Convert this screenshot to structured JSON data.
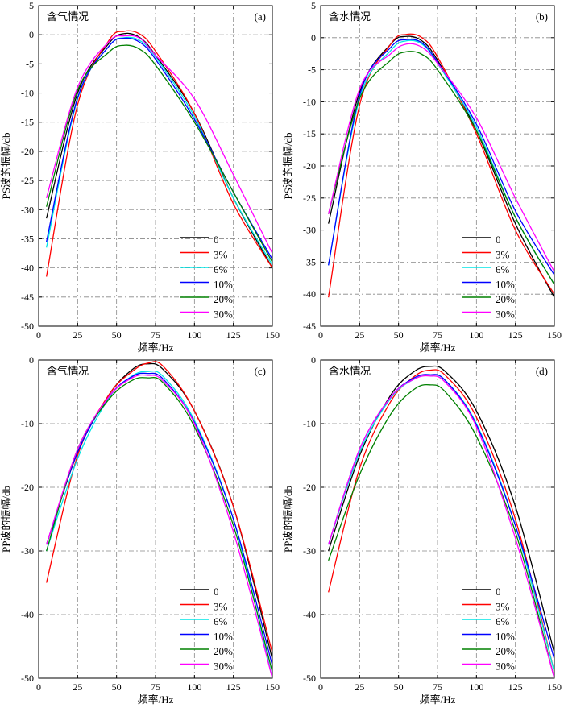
{
  "colors": {
    "0": "#000000",
    "3%": "#ff0000",
    "6%": "#00e6e6",
    "10%": "#0000ff",
    "20%": "#008000",
    "30%": "#ff00ff"
  },
  "chart_data": [
    {
      "type": "line",
      "panel_label": "(a)",
      "condition": "含气情况",
      "xlabel": "频率/Hz",
      "ylabel": "PS波的振幅/db",
      "xlim": [
        0,
        150
      ],
      "ylim": [
        -50,
        5
      ],
      "xticks": [
        "0",
        "25",
        "50",
        "75",
        "100",
        "125",
        "150"
      ],
      "yticks": [
        "5",
        "0",
        "-5",
        "-10",
        "-15",
        "-20",
        "-25",
        "-30",
        "-35",
        "-40",
        "-45",
        "-50"
      ],
      "x": [
        5,
        25,
        45,
        55,
        65,
        75,
        100,
        125,
        150
      ],
      "series": [
        {
          "name": "0",
          "values": [
            -31.5,
            -10,
            -1.5,
            0.2,
            -0.5,
            -3.5,
            -13.5,
            -28,
            -40
          ]
        },
        {
          "name": "3%",
          "values": [
            -41.5,
            -12,
            -1.0,
            0.6,
            0.1,
            -2.8,
            -13.5,
            -29,
            -40
          ]
        },
        {
          "name": "6%",
          "values": [
            -36.5,
            -11,
            -2.0,
            -0.5,
            -1.0,
            -3.8,
            -14.0,
            -28,
            -39.5
          ]
        },
        {
          "name": "10%",
          "values": [
            -35.5,
            -10.8,
            -2.0,
            -0.6,
            -1.3,
            -4.2,
            -14.5,
            -27,
            -38.5
          ]
        },
        {
          "name": "20%",
          "values": [
            -29.5,
            -9.5,
            -3.0,
            -1.8,
            -2.5,
            -5.2,
            -15.0,
            -27,
            -39
          ]
        },
        {
          "name": "30%",
          "values": [
            -28,
            -9.0,
            -1.2,
            -0.2,
            -0.6,
            -3.5,
            -11.0,
            -24,
            -37.5
          ]
        }
      ]
    },
    {
      "type": "line",
      "panel_label": "(b)",
      "condition": "含水情况",
      "xlabel": "频率/Hz",
      "ylabel": "PS波的振幅/db",
      "xlim": [
        0,
        150
      ],
      "ylim": [
        -45,
        5
      ],
      "xticks": [
        "0",
        "25",
        "50",
        "75",
        "100",
        "125",
        "150"
      ],
      "yticks": [
        "5",
        "0",
        "-5",
        "-10",
        "-15",
        "-20",
        "-25",
        "-30",
        "-35",
        "-40",
        "-45"
      ],
      "x": [
        5,
        25,
        45,
        55,
        65,
        75,
        100,
        125,
        150
      ],
      "series": [
        {
          "name": "0",
          "values": [
            -29,
            -8.5,
            -1.0,
            0.2,
            -0.5,
            -3.5,
            -14.5,
            -29,
            -40.5
          ]
        },
        {
          "name": "3%",
          "values": [
            -40.5,
            -10.5,
            -1.0,
            0.5,
            0.0,
            -3.0,
            -15.0,
            -30,
            -40
          ]
        },
        {
          "name": "6%",
          "values": [
            -35.5,
            -9.5,
            -2.0,
            -0.5,
            -1.0,
            -4.0,
            -14.0,
            -28,
            -38.5
          ]
        },
        {
          "name": "10%",
          "values": [
            -35.5,
            -9.0,
            -1.5,
            -0.3,
            -0.8,
            -3.8,
            -13.5,
            -27,
            -37
          ]
        },
        {
          "name": "20%",
          "values": [
            -27.5,
            -9.5,
            -3.5,
            -2.2,
            -2.6,
            -5.0,
            -14.5,
            -28,
            -38.5
          ]
        },
        {
          "name": "30%",
          "values": [
            -27.5,
            -8.0,
            -2.5,
            -1.0,
            -1.5,
            -4.0,
            -12.5,
            -25,
            -36.5
          ]
        }
      ]
    },
    {
      "type": "line",
      "panel_label": "(c)",
      "condition": "含气情况",
      "xlabel": "频率/Hz",
      "ylabel": "PP波的振幅/db",
      "xlim": [
        0,
        150
      ],
      "ylim": [
        -50,
        0
      ],
      "xticks": [
        "0",
        "25",
        "50",
        "75",
        "100",
        "125",
        "150"
      ],
      "yticks": [
        "0",
        "-10",
        "-20",
        "-30",
        "-40",
        "-50"
      ],
      "x": [
        5,
        25,
        45,
        60,
        70,
        80,
        100,
        125,
        150
      ],
      "series": [
        {
          "name": "0",
          "values": [
            -29,
            -14.5,
            -5.5,
            -1.5,
            -0.6,
            -1.5,
            -8.0,
            -23,
            -47
          ]
        },
        {
          "name": "3%",
          "values": [
            -35,
            -15.0,
            -5.5,
            -1.8,
            -0.5,
            -1.0,
            -8.0,
            -23,
            -46
          ]
        },
        {
          "name": "6%",
          "values": [
            -30,
            -15.5,
            -6.0,
            -2.5,
            -1.8,
            -2.6,
            -9.5,
            -25,
            -50
          ]
        },
        {
          "name": "10%",
          "values": [
            -29,
            -14.5,
            -5.8,
            -2.6,
            -2.1,
            -3.0,
            -9.8,
            -25,
            -48
          ]
        },
        {
          "name": "20%",
          "values": [
            -30,
            -14.0,
            -6.2,
            -3.2,
            -2.8,
            -3.6,
            -10.5,
            -26,
            -49
          ]
        },
        {
          "name": "30%",
          "values": [
            -29,
            -14.0,
            -5.8,
            -2.8,
            -2.4,
            -3.3,
            -10.0,
            -27,
            -50
          ]
        }
      ]
    },
    {
      "type": "line",
      "panel_label": "(d)",
      "condition": "含水情况",
      "xlabel": "频率/Hz",
      "ylabel": "PP波的振幅/db",
      "xlim": [
        0,
        150
      ],
      "ylim": [
        -50,
        0
      ],
      "xticks": [
        "0",
        "25",
        "50",
        "75",
        "100",
        "125",
        "150"
      ],
      "yticks": [
        "0",
        "-10",
        "-20",
        "-30",
        "-40",
        "-50"
      ],
      "x": [
        5,
        25,
        45,
        60,
        70,
        80,
        100,
        125,
        150
      ],
      "series": [
        {
          "name": "0",
          "values": [
            -30,
            -15.0,
            -5.5,
            -1.8,
            -1.0,
            -1.8,
            -8.0,
            -23,
            -46
          ]
        },
        {
          "name": "3%",
          "values": [
            -36.5,
            -17.0,
            -6.5,
            -2.6,
            -1.6,
            -2.4,
            -9.0,
            -25,
            -49
          ]
        },
        {
          "name": "6%",
          "values": [
            -29,
            -14.5,
            -6.0,
            -3.0,
            -2.4,
            -3.2,
            -10.0,
            -26,
            -49
          ]
        },
        {
          "name": "10%",
          "values": [
            -29,
            -14.0,
            -5.8,
            -2.8,
            -2.3,
            -3.2,
            -10.2,
            -26,
            -47
          ]
        },
        {
          "name": "20%",
          "values": [
            -31.5,
            -18.0,
            -8.5,
            -4.6,
            -3.9,
            -5.0,
            -12.0,
            -27,
            -50
          ]
        },
        {
          "name": "30%",
          "values": [
            -29,
            -14.0,
            -5.8,
            -3.0,
            -2.5,
            -3.5,
            -10.5,
            -28,
            -50
          ]
        }
      ]
    }
  ]
}
